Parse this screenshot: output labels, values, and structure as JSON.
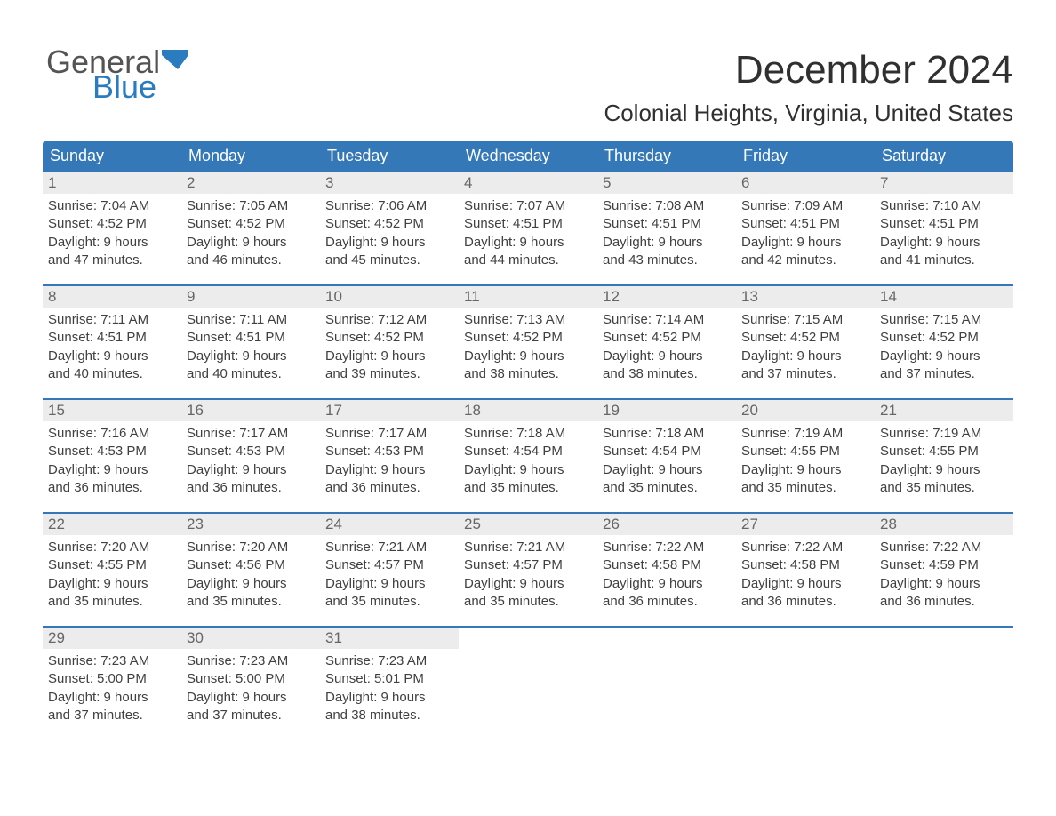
{
  "brand": {
    "word1": "General",
    "word2": "Blue",
    "logo_color": "#2b7bbf",
    "text_color": "#545454"
  },
  "title": "December 2024",
  "location": "Colonial Heights, Virginia, United States",
  "colors": {
    "header_bg": "#3478b8",
    "header_text": "#ffffff",
    "daynum_bg": "#ececec",
    "daynum_text": "#666666",
    "body_text": "#404040",
    "rule": "#3478b8",
    "page_bg": "#ffffff"
  },
  "day_labels": [
    "Sunday",
    "Monday",
    "Tuesday",
    "Wednesday",
    "Thursday",
    "Friday",
    "Saturday"
  ],
  "weeks": [
    [
      {
        "n": "1",
        "sunrise": "Sunrise: 7:04 AM",
        "sunset": "Sunset: 4:52 PM",
        "d1": "Daylight: 9 hours",
        "d2": "and 47 minutes."
      },
      {
        "n": "2",
        "sunrise": "Sunrise: 7:05 AM",
        "sunset": "Sunset: 4:52 PM",
        "d1": "Daylight: 9 hours",
        "d2": "and 46 minutes."
      },
      {
        "n": "3",
        "sunrise": "Sunrise: 7:06 AM",
        "sunset": "Sunset: 4:52 PM",
        "d1": "Daylight: 9 hours",
        "d2": "and 45 minutes."
      },
      {
        "n": "4",
        "sunrise": "Sunrise: 7:07 AM",
        "sunset": "Sunset: 4:51 PM",
        "d1": "Daylight: 9 hours",
        "d2": "and 44 minutes."
      },
      {
        "n": "5",
        "sunrise": "Sunrise: 7:08 AM",
        "sunset": "Sunset: 4:51 PM",
        "d1": "Daylight: 9 hours",
        "d2": "and 43 minutes."
      },
      {
        "n": "6",
        "sunrise": "Sunrise: 7:09 AM",
        "sunset": "Sunset: 4:51 PM",
        "d1": "Daylight: 9 hours",
        "d2": "and 42 minutes."
      },
      {
        "n": "7",
        "sunrise": "Sunrise: 7:10 AM",
        "sunset": "Sunset: 4:51 PM",
        "d1": "Daylight: 9 hours",
        "d2": "and 41 minutes."
      }
    ],
    [
      {
        "n": "8",
        "sunrise": "Sunrise: 7:11 AM",
        "sunset": "Sunset: 4:51 PM",
        "d1": "Daylight: 9 hours",
        "d2": "and 40 minutes."
      },
      {
        "n": "9",
        "sunrise": "Sunrise: 7:11 AM",
        "sunset": "Sunset: 4:51 PM",
        "d1": "Daylight: 9 hours",
        "d2": "and 40 minutes."
      },
      {
        "n": "10",
        "sunrise": "Sunrise: 7:12 AM",
        "sunset": "Sunset: 4:52 PM",
        "d1": "Daylight: 9 hours",
        "d2": "and 39 minutes."
      },
      {
        "n": "11",
        "sunrise": "Sunrise: 7:13 AM",
        "sunset": "Sunset: 4:52 PM",
        "d1": "Daylight: 9 hours",
        "d2": "and 38 minutes."
      },
      {
        "n": "12",
        "sunrise": "Sunrise: 7:14 AM",
        "sunset": "Sunset: 4:52 PM",
        "d1": "Daylight: 9 hours",
        "d2": "and 38 minutes."
      },
      {
        "n": "13",
        "sunrise": "Sunrise: 7:15 AM",
        "sunset": "Sunset: 4:52 PM",
        "d1": "Daylight: 9 hours",
        "d2": "and 37 minutes."
      },
      {
        "n": "14",
        "sunrise": "Sunrise: 7:15 AM",
        "sunset": "Sunset: 4:52 PM",
        "d1": "Daylight: 9 hours",
        "d2": "and 37 minutes."
      }
    ],
    [
      {
        "n": "15",
        "sunrise": "Sunrise: 7:16 AM",
        "sunset": "Sunset: 4:53 PM",
        "d1": "Daylight: 9 hours",
        "d2": "and 36 minutes."
      },
      {
        "n": "16",
        "sunrise": "Sunrise: 7:17 AM",
        "sunset": "Sunset: 4:53 PM",
        "d1": "Daylight: 9 hours",
        "d2": "and 36 minutes."
      },
      {
        "n": "17",
        "sunrise": "Sunrise: 7:17 AM",
        "sunset": "Sunset: 4:53 PM",
        "d1": "Daylight: 9 hours",
        "d2": "and 36 minutes."
      },
      {
        "n": "18",
        "sunrise": "Sunrise: 7:18 AM",
        "sunset": "Sunset: 4:54 PM",
        "d1": "Daylight: 9 hours",
        "d2": "and 35 minutes."
      },
      {
        "n": "19",
        "sunrise": "Sunrise: 7:18 AM",
        "sunset": "Sunset: 4:54 PM",
        "d1": "Daylight: 9 hours",
        "d2": "and 35 minutes."
      },
      {
        "n": "20",
        "sunrise": "Sunrise: 7:19 AM",
        "sunset": "Sunset: 4:55 PM",
        "d1": "Daylight: 9 hours",
        "d2": "and 35 minutes."
      },
      {
        "n": "21",
        "sunrise": "Sunrise: 7:19 AM",
        "sunset": "Sunset: 4:55 PM",
        "d1": "Daylight: 9 hours",
        "d2": "and 35 minutes."
      }
    ],
    [
      {
        "n": "22",
        "sunrise": "Sunrise: 7:20 AM",
        "sunset": "Sunset: 4:55 PM",
        "d1": "Daylight: 9 hours",
        "d2": "and 35 minutes."
      },
      {
        "n": "23",
        "sunrise": "Sunrise: 7:20 AM",
        "sunset": "Sunset: 4:56 PM",
        "d1": "Daylight: 9 hours",
        "d2": "and 35 minutes."
      },
      {
        "n": "24",
        "sunrise": "Sunrise: 7:21 AM",
        "sunset": "Sunset: 4:57 PM",
        "d1": "Daylight: 9 hours",
        "d2": "and 35 minutes."
      },
      {
        "n": "25",
        "sunrise": "Sunrise: 7:21 AM",
        "sunset": "Sunset: 4:57 PM",
        "d1": "Daylight: 9 hours",
        "d2": "and 35 minutes."
      },
      {
        "n": "26",
        "sunrise": "Sunrise: 7:22 AM",
        "sunset": "Sunset: 4:58 PM",
        "d1": "Daylight: 9 hours",
        "d2": "and 36 minutes."
      },
      {
        "n": "27",
        "sunrise": "Sunrise: 7:22 AM",
        "sunset": "Sunset: 4:58 PM",
        "d1": "Daylight: 9 hours",
        "d2": "and 36 minutes."
      },
      {
        "n": "28",
        "sunrise": "Sunrise: 7:22 AM",
        "sunset": "Sunset: 4:59 PM",
        "d1": "Daylight: 9 hours",
        "d2": "and 36 minutes."
      }
    ],
    [
      {
        "n": "29",
        "sunrise": "Sunrise: 7:23 AM",
        "sunset": "Sunset: 5:00 PM",
        "d1": "Daylight: 9 hours",
        "d2": "and 37 minutes."
      },
      {
        "n": "30",
        "sunrise": "Sunrise: 7:23 AM",
        "sunset": "Sunset: 5:00 PM",
        "d1": "Daylight: 9 hours",
        "d2": "and 37 minutes."
      },
      {
        "n": "31",
        "sunrise": "Sunrise: 7:23 AM",
        "sunset": "Sunset: 5:01 PM",
        "d1": "Daylight: 9 hours",
        "d2": "and 38 minutes."
      },
      null,
      null,
      null,
      null
    ]
  ]
}
